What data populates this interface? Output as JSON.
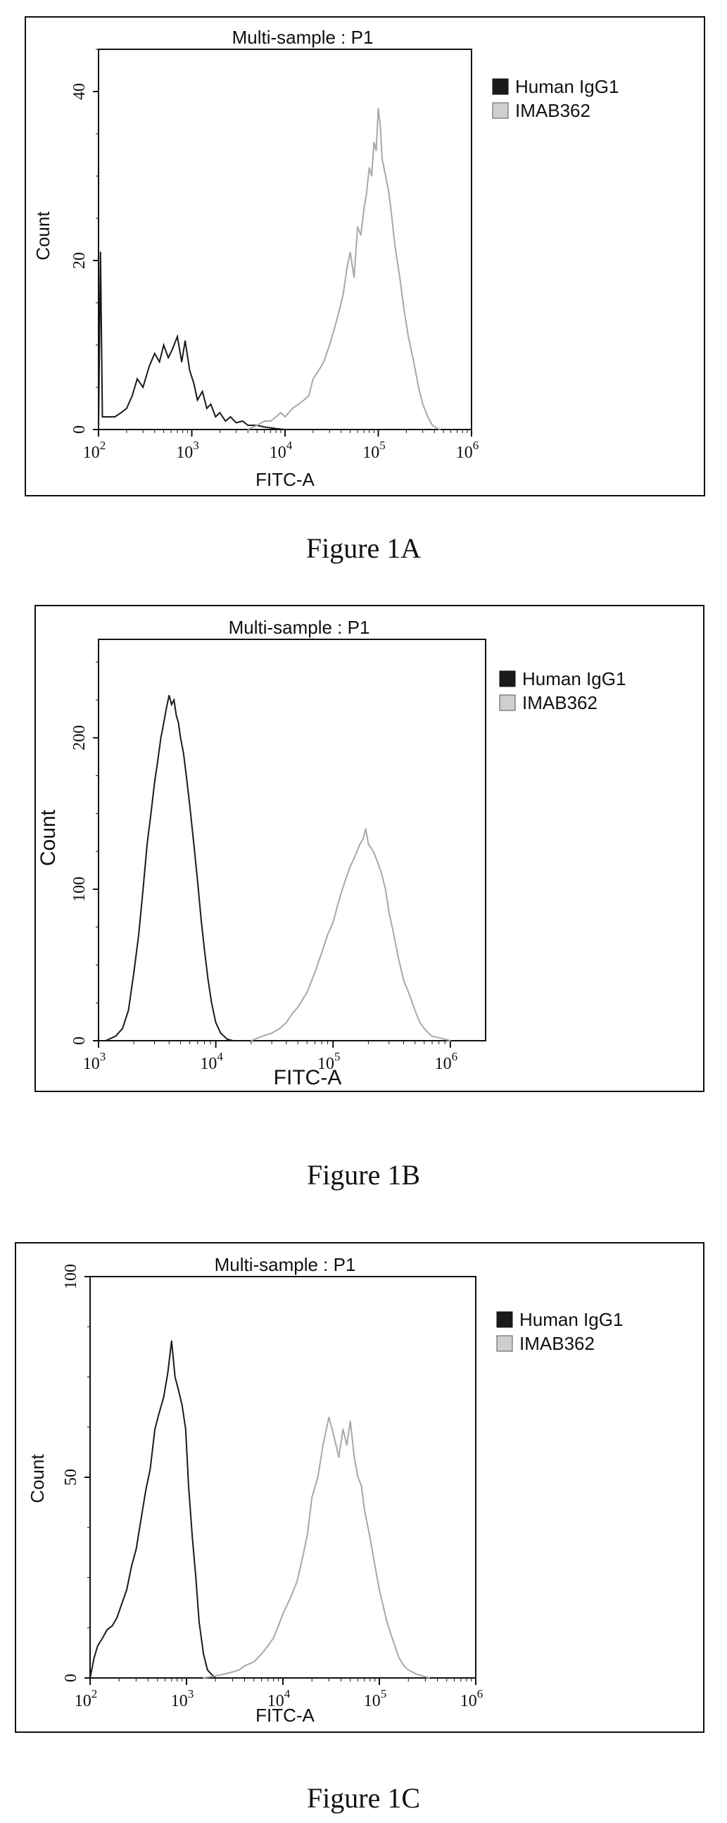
{
  "figures": [
    {
      "id": "1A",
      "caption": "Figure 1A",
      "chart_data": {
        "type": "line",
        "title": "Multi-sample : P1",
        "xlabel": "FITC-A",
        "ylabel": "Count",
        "xscale": "log",
        "xlim": [
          100,
          1000000
        ],
        "ylim": [
          0,
          45
        ],
        "x_ticks": [
          100,
          1000,
          10000,
          100000,
          1000000
        ],
        "x_tick_labels": [
          {
            "base": "10",
            "exp": "2"
          },
          {
            "base": "10",
            "exp": "3"
          },
          {
            "base": "10",
            "exp": "4"
          },
          {
            "base": "10",
            "exp": "5"
          },
          {
            "base": "10",
            "exp": "6"
          }
        ],
        "y_ticks": [
          0,
          20,
          40
        ],
        "y_tick_labels": [
          "0",
          "20",
          "40"
        ],
        "legend_position": "right",
        "series": [
          {
            "name": "Human IgG1",
            "color": "#1a1a1a",
            "x": [
              100,
              105,
              110,
              120,
              135,
              150,
              175,
              200,
              230,
              260,
              300,
              350,
              400,
              450,
              500,
              560,
              620,
              700,
              780,
              850,
              950,
              1050,
              1150,
              1300,
              1450,
              1600,
              1800,
              2000,
              2300,
              2600,
              3000,
              3500,
              4000,
              5000,
              6000,
              7000,
              8000,
              10000
            ],
            "values": [
              0,
              21,
              1.5,
              1.5,
              1.5,
              1.5,
              2.0,
              2.5,
              4.0,
              6.0,
              5.0,
              7.5,
              9.0,
              8.0,
              10.0,
              8.5,
              9.5,
              11.0,
              8.0,
              10.5,
              7.0,
              5.5,
              3.5,
              4.5,
              2.5,
              3.0,
              1.5,
              2.0,
              1.0,
              1.5,
              0.8,
              1.0,
              0.5,
              0.5,
              0.3,
              0.2,
              0.1,
              0
            ]
          },
          {
            "name": "IMAB362",
            "color": "#a8a8a8",
            "x": [
              4000,
              5000,
              6000,
              7000,
              8000,
              9000,
              10000,
              12000,
              14000,
              16000,
              18000,
              20000,
              23000,
              26000,
              30000,
              34000,
              38000,
              42000,
              46000,
              50000,
              55000,
              60000,
              65000,
              70000,
              75000,
              80000,
              85000,
              90000,
              95000,
              100000,
              105000,
              110000,
              120000,
              130000,
              140000,
              150000,
              170000,
              190000,
              210000,
              240000,
              270000,
              300000,
              340000,
              380000,
              420000,
              460000
            ],
            "values": [
              0,
              0.5,
              1,
              1,
              1.5,
              2,
              1.5,
              2.5,
              3,
              3.5,
              4,
              6,
              7,
              8,
              10,
              12,
              14,
              16,
              19,
              21,
              18,
              24,
              23,
              26,
              28,
              31,
              30,
              34,
              33,
              38,
              36,
              32,
              30,
              28,
              25,
              22,
              18,
              14,
              11,
              8,
              5,
              3,
              1.5,
              0.5,
              0.2,
              0
            ]
          }
        ]
      }
    },
    {
      "id": "1B",
      "caption": "Figure 1B",
      "chart_data": {
        "type": "line",
        "title": "Multi-sample : P1",
        "xlabel": "FITC-A",
        "ylabel": "Count",
        "xscale": "log",
        "xlim": [
          1000,
          2000000
        ],
        "ylim": [
          0,
          265
        ],
        "x_ticks": [
          1000,
          10000,
          100000,
          1000000
        ],
        "x_tick_labels": [
          {
            "base": "10",
            "exp": "3"
          },
          {
            "base": "10",
            "exp": "4"
          },
          {
            "base": "10",
            "exp": "5"
          },
          {
            "base": "10",
            "exp": "6"
          }
        ],
        "y_ticks": [
          0,
          100,
          200
        ],
        "y_tick_labels": [
          "0",
          "100",
          "200"
        ],
        "legend_position": "right",
        "series": [
          {
            "name": "Human IgG1",
            "color": "#1a1a1a",
            "x": [
              1150,
              1400,
              1600,
              1800,
              2000,
              2200,
              2400,
              2600,
              2800,
              3000,
              3200,
              3400,
              3600,
              3800,
              4000,
              4200,
              4400,
              4600,
              4800,
              5000,
              5300,
              5600,
              6000,
              6500,
              7000,
              7500,
              8000,
              8600,
              9200,
              10000,
              11000,
              12500,
              14000
            ],
            "values": [
              0,
              3,
              8,
              20,
              45,
              70,
              100,
              130,
              150,
              170,
              185,
              200,
              210,
              220,
              228,
              222,
              225,
              215,
              210,
              200,
              190,
              175,
              155,
              130,
              105,
              80,
              60,
              40,
              25,
              12,
              5,
              1,
              0
            ]
          },
          {
            "name": "IMAB362",
            "color": "#a8a8a8",
            "x": [
              20000,
              25000,
              30000,
              35000,
              40000,
              45000,
              50000,
              60000,
              70000,
              80000,
              90000,
              100000,
              110000,
              120000,
              130000,
              140000,
              150000,
              160000,
              170000,
              180000,
              190000,
              200000,
              220000,
              240000,
              260000,
              280000,
              300000,
              330000,
              360000,
              400000,
              450000,
              500000,
              550000,
              600000,
              650000,
              700000,
              800000,
              900000,
              1000000
            ],
            "values": [
              0,
              3,
              5,
              8,
              12,
              18,
              22,
              32,
              45,
              58,
              70,
              78,
              90,
              100,
              108,
              115,
              120,
              125,
              130,
              133,
              140,
              130,
              125,
              118,
              110,
              100,
              85,
              70,
              55,
              40,
              30,
              20,
              12,
              8,
              5,
              3,
              2,
              1,
              0
            ]
          }
        ]
      }
    },
    {
      "id": "1C",
      "caption": "Figure 1C",
      "chart_data": {
        "type": "line",
        "title": "Multi-sample : P1",
        "xlabel": "FITC-A",
        "ylabel": "Count",
        "xscale": "log",
        "xlim": [
          100,
          1000000
        ],
        "ylim": [
          0,
          100
        ],
        "x_ticks": [
          100,
          1000,
          10000,
          100000,
          1000000
        ],
        "x_tick_labels": [
          {
            "base": "10",
            "exp": "2"
          },
          {
            "base": "10",
            "exp": "3"
          },
          {
            "base": "10",
            "exp": "4"
          },
          {
            "base": "10",
            "exp": "5"
          },
          {
            "base": "10",
            "exp": "6"
          }
        ],
        "y_ticks": [
          0,
          50,
          100
        ],
        "y_tick_labels": [
          "0",
          "50",
          "100"
        ],
        "legend_position": "right",
        "series": [
          {
            "name": "Human IgG1",
            "color": "#1a1a1a",
            "x": [
              100,
              110,
              120,
              135,
              150,
              170,
              190,
              210,
              240,
              270,
              300,
              340,
              380,
              420,
              470,
              520,
              580,
              640,
              700,
              760,
              820,
              900,
              980,
              1050,
              1150,
              1250,
              1350,
              1500,
              1650,
              1800,
              2000
            ],
            "values": [
              0,
              5,
              8,
              10,
              12,
              13,
              15,
              18,
              22,
              28,
              32,
              40,
              47,
              52,
              62,
              66,
              70,
              76,
              84,
              75,
              72,
              68,
              62,
              48,
              35,
              25,
              14,
              6,
              2,
              1,
              0
            ]
          },
          {
            "name": "IMAB362",
            "color": "#a8a8a8",
            "x": [
              1500,
              2000,
              2500,
              3000,
              3500,
              4000,
              5000,
              6000,
              7000,
              8000,
              9000,
              10000,
              12000,
              14000,
              16000,
              18000,
              20000,
              23000,
              26000,
              30000,
              34000,
              38000,
              42000,
              46000,
              50000,
              55000,
              60000,
              65000,
              70000,
              80000,
              90000,
              100000,
              120000,
              140000,
              160000,
              180000,
              200000,
              240000,
              280000,
              330000
            ],
            "values": [
              0,
              0.5,
              1,
              1.5,
              2,
              3,
              4,
              6,
              8,
              10,
              13,
              16,
              20,
              24,
              30,
              36,
              45,
              50,
              58,
              65,
              60,
              55,
              62,
              58,
              64,
              55,
              50,
              48,
              42,
              35,
              28,
              22,
              14,
              9,
              5,
              3,
              2,
              1,
              0.5,
              0
            ]
          }
        ]
      }
    }
  ]
}
